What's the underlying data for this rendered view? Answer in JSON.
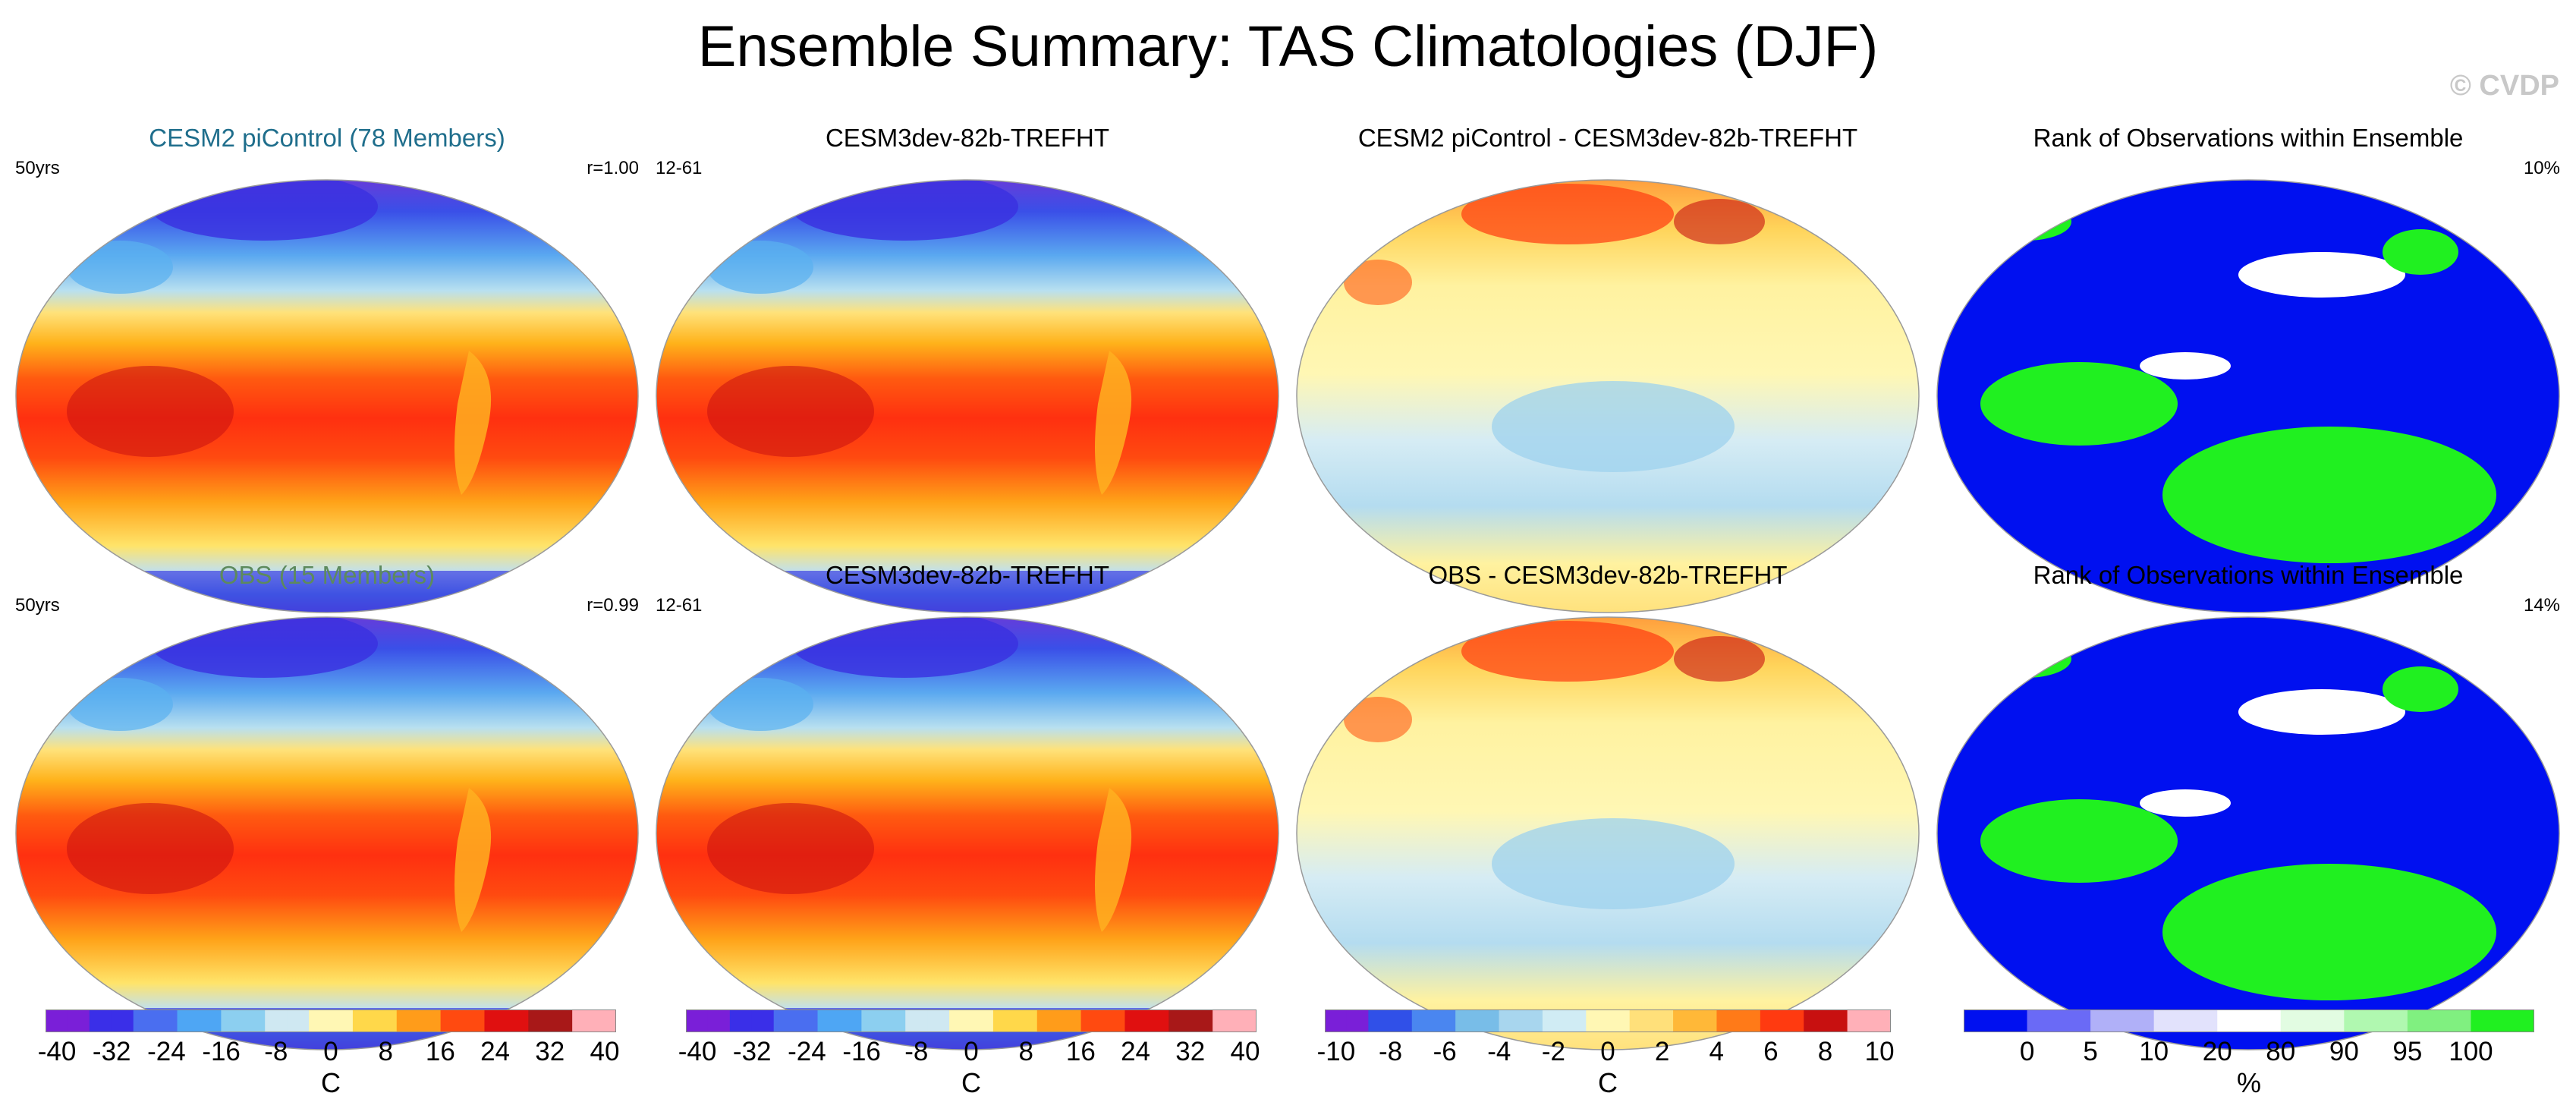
{
  "title": "Ensemble Summary: TAS Climatologies (DJF)",
  "watermark": "© CVDP",
  "colors": {
    "ens_blue": "#1f6e8c",
    "obs_green": "#5d8a5d",
    "rank_blue": "#0010f0",
    "rank_green": "#20f020",
    "temp_scale": [
      "#7a1fd8",
      "#3a2fe8",
      "#4a6ef0",
      "#4ea6f4",
      "#8ccff0",
      "#cfe8f2",
      "#fff7b4",
      "#ffd84a",
      "#ff9c1a",
      "#ff4a10",
      "#e01010",
      "#a81818",
      "#ffb0b8"
    ],
    "diff_scale": [
      "#7a1fd8",
      "#3050e8",
      "#4a86f0",
      "#78bde8",
      "#a8d6ee",
      "#d0ecf4",
      "#fff7b4",
      "#ffe07a",
      "#ffb838",
      "#ff7a18",
      "#ff3a10",
      "#c81010",
      "#ffb0b8"
    ],
    "rank_scale": [
      "#0010f0",
      "#6a6af6",
      "#b0b0f8",
      "#e2e2fc",
      "#ffffff",
      "#e2fce2",
      "#b0f8b0",
      "#80f080",
      "#20f020"
    ]
  },
  "panels": [
    {
      "title": "CESM2 piControl (78 Members)",
      "left": "50yrs",
      "right": "r=1.00",
      "kind": "climatology"
    },
    {
      "title": "CESM3dev-82b-TREFHT",
      "left": "12-61",
      "right": "",
      "kind": "climatology"
    },
    {
      "title": "CESM2 piControl - CESM3dev-82b-TREFHT",
      "left": "",
      "right": "",
      "kind": "difference"
    },
    {
      "title": "Rank of Observations within Ensemble",
      "left": "",
      "right": "10%",
      "kind": "rank"
    },
    {
      "title": "OBS (15 Members)",
      "left": "50yrs",
      "right": "r=0.99",
      "kind": "climatology"
    },
    {
      "title": "CESM3dev-82b-TREFHT",
      "left": "12-61",
      "right": "",
      "kind": "climatology"
    },
    {
      "title": "OBS - CESM3dev-82b-TREFHT",
      "left": "",
      "right": "",
      "kind": "difference"
    },
    {
      "title": "Rank of Observations within Ensemble",
      "left": "",
      "right": "14%",
      "kind": "rank"
    }
  ],
  "colorbars": [
    {
      "unit": "C",
      "ticks": [
        "-40",
        "-32",
        "-24",
        "-16",
        "-8",
        "0",
        "8",
        "16",
        "24",
        "32",
        "40"
      ],
      "scale": "temp"
    },
    {
      "unit": "C",
      "ticks": [
        "-40",
        "-32",
        "-24",
        "-16",
        "-8",
        "0",
        "8",
        "16",
        "24",
        "32",
        "40"
      ],
      "scale": "temp"
    },
    {
      "unit": "C",
      "ticks": [
        "-10",
        "-8",
        "-6",
        "-4",
        "-2",
        "0",
        "2",
        "4",
        "6",
        "8",
        "10"
      ],
      "scale": "diff"
    },
    {
      "unit": "%",
      "ticks": [
        "0",
        "5",
        "10",
        "20",
        "80",
        "90",
        "95",
        "100"
      ],
      "scale": "rank"
    }
  ],
  "chart_data": [
    {
      "type": "heatmap",
      "title": "CESM2 piControl (78 Members)",
      "variable": "TAS",
      "season": "DJF",
      "units": "C",
      "range": [
        -40,
        40
      ],
      "period": "50yrs",
      "pattern_correlation": 1.0
    },
    {
      "type": "heatmap",
      "title": "CESM3dev-82b-TREFHT",
      "variable": "TAS",
      "season": "DJF",
      "units": "C",
      "range": [
        -40,
        40
      ],
      "period": "12-61"
    },
    {
      "type": "heatmap",
      "title": "CESM2 piControl - CESM3dev-82b-TREFHT",
      "units": "C",
      "range": [
        -10,
        10
      ]
    },
    {
      "type": "heatmap",
      "title": "Rank of Observations within Ensemble",
      "units": "%",
      "levels": [
        0,
        5,
        10,
        20,
        80,
        90,
        95,
        100
      ],
      "summary_percent": 10
    },
    {
      "type": "heatmap",
      "title": "OBS (15 Members)",
      "variable": "TAS",
      "season": "DJF",
      "units": "C",
      "range": [
        -40,
        40
      ],
      "period": "50yrs",
      "pattern_correlation": 0.99
    },
    {
      "type": "heatmap",
      "title": "CESM3dev-82b-TREFHT",
      "variable": "TAS",
      "season": "DJF",
      "units": "C",
      "range": [
        -40,
        40
      ],
      "period": "12-61"
    },
    {
      "type": "heatmap",
      "title": "OBS - CESM3dev-82b-TREFHT",
      "units": "C",
      "range": [
        -10,
        10
      ]
    },
    {
      "type": "heatmap",
      "title": "Rank of Observations within Ensemble",
      "units": "%",
      "levels": [
        0,
        5,
        10,
        20,
        80,
        90,
        95,
        100
      ],
      "summary_percent": 14
    }
  ]
}
